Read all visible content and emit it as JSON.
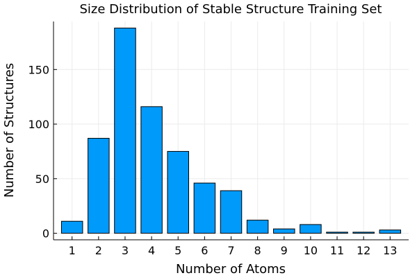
{
  "chart_data": {
    "type": "bar",
    "title": "Size Distribution of Stable Structure Training Set",
    "xlabel": "Number of Atoms",
    "ylabel": "Number of Structures",
    "categories": [
      "1",
      "2",
      "3",
      "4",
      "5",
      "6",
      "7",
      "8",
      "9",
      "10",
      "11",
      "12",
      "13"
    ],
    "values": [
      11,
      87,
      188,
      116,
      75,
      46,
      39,
      12,
      4,
      8,
      1,
      1,
      3
    ],
    "ylim": [
      -6,
      194
    ],
    "yticks": [
      0,
      50,
      100,
      150
    ],
    "grid": true,
    "legend": "none",
    "colors": {
      "bar": "#009AFA",
      "bar_stroke": "#000000",
      "grid": "#EBEBEB",
      "axis": "#000000"
    }
  }
}
